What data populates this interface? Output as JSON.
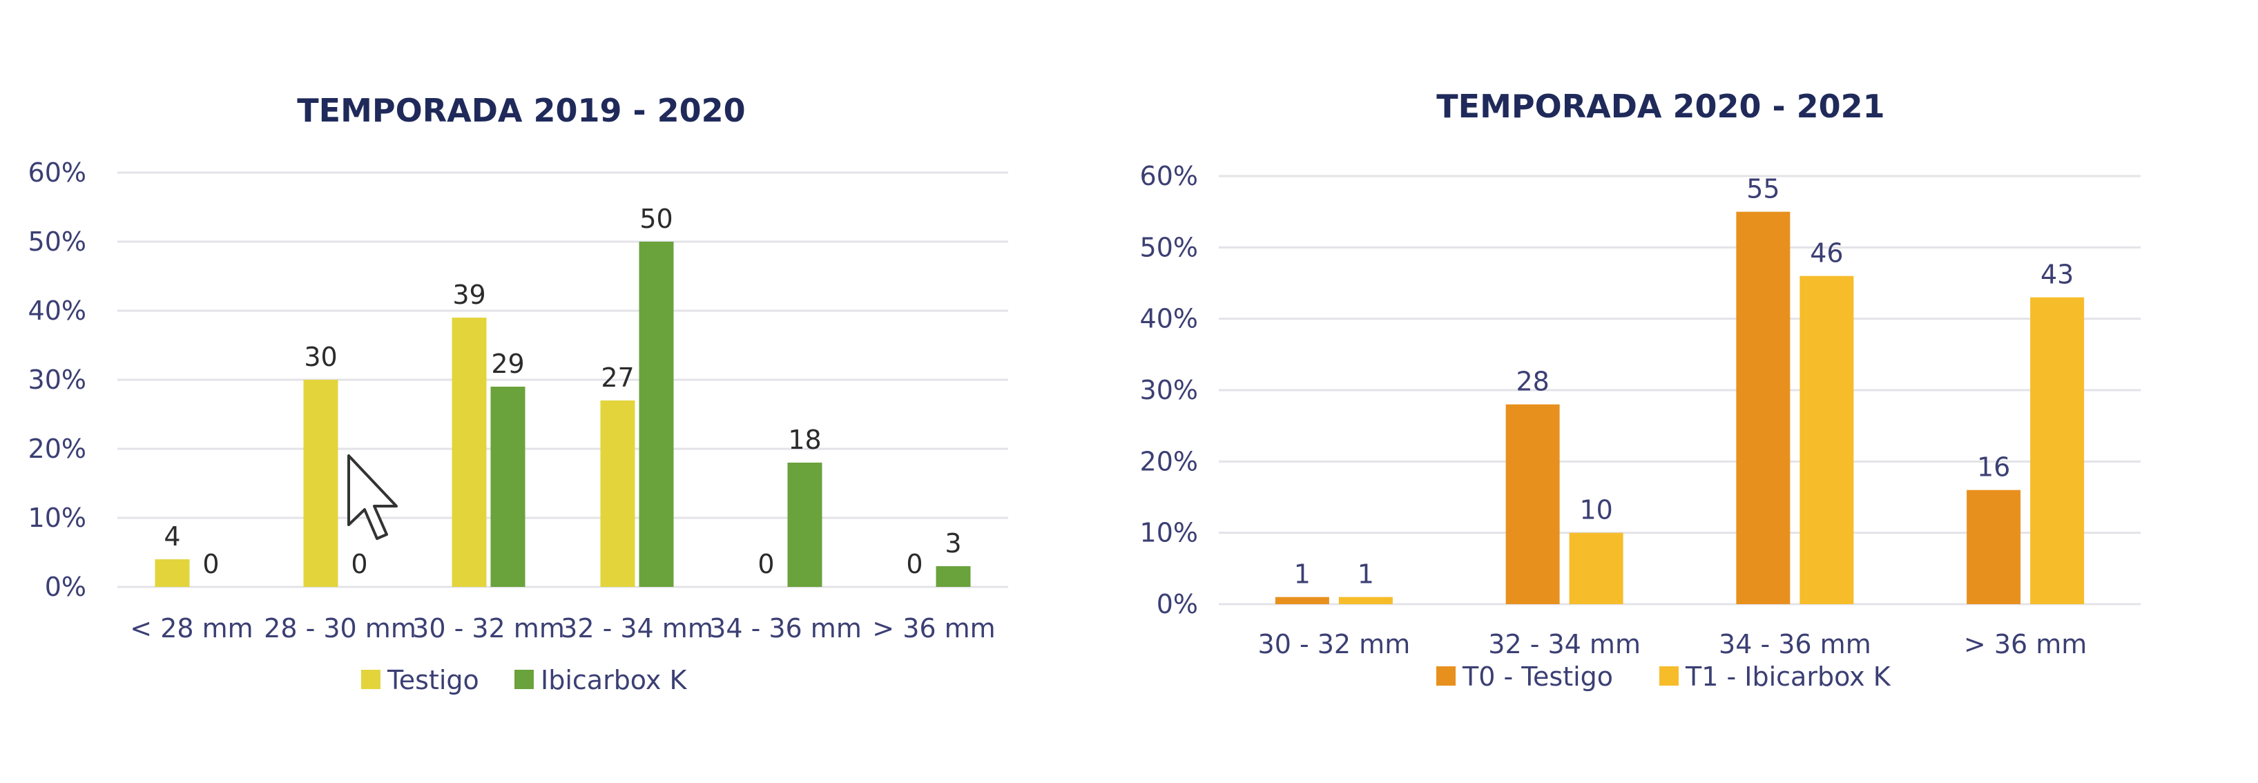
{
  "chart_data": [
    {
      "type": "bar",
      "title": "TEMPORADA 2019 - 2020",
      "categories": [
        "< 28 mm",
        "28 - 30 mm",
        "30 - 32 mm",
        "32 - 34 mm",
        "34 - 36 mm",
        "> 36 mm"
      ],
      "series": [
        {
          "name": "Testigo",
          "values": [
            4,
            30,
            39,
            27,
            0,
            0
          ],
          "color": "#e3d43c"
        },
        {
          "name": "Ibicarbox K",
          "values": [
            0,
            0,
            29,
            50,
            18,
            3
          ],
          "color": "#6aa23c"
        }
      ],
      "yticks": [
        "0%",
        "10%",
        "20%",
        "30%",
        "40%",
        "50%",
        "60%"
      ],
      "ylim": [
        0,
        60
      ],
      "grid": true,
      "legend": "bottom"
    },
    {
      "type": "bar",
      "title": "TEMPORADA 2020 - 2021",
      "categories": [
        "30 - 32 mm",
        "32 - 34 mm",
        "34 - 36 mm",
        "> 36 mm"
      ],
      "series": [
        {
          "name": "T0 - Testigo",
          "values": [
            1,
            28,
            55,
            16
          ],
          "color": "#e8901e"
        },
        {
          "name": "T1 - Ibicarbox K",
          "values": [
            1,
            10,
            46,
            43
          ],
          "color": "#f6bc2a"
        }
      ],
      "yticks": [
        "0%",
        "10%",
        "20%",
        "30%",
        "40%",
        "50%",
        "60%"
      ],
      "ylim": [
        0,
        60
      ],
      "grid": true,
      "legend": "bottom"
    }
  ]
}
